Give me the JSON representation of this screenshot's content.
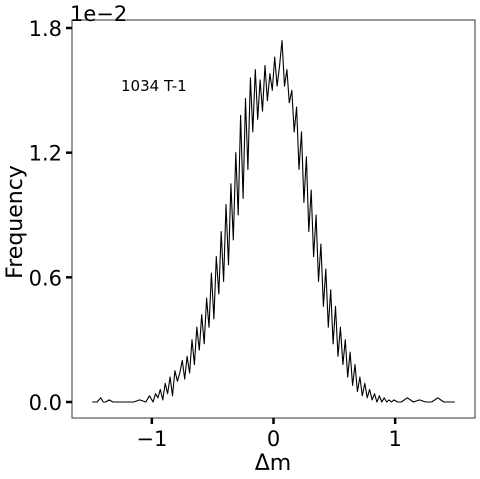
{
  "chart_data": {
    "type": "line",
    "title": "",
    "annotation": "1034 T-1",
    "scale_label": "1e−2",
    "xlabel": "Δm",
    "ylabel": "Frequency",
    "xlim": [
      -1.5,
      1.5
    ],
    "ylim": [
      0.0,
      1.8
    ],
    "x_ticks": [
      -1,
      0,
      1
    ],
    "x_tick_labels": [
      "−1",
      "0",
      "1"
    ],
    "y_ticks": [
      0.0,
      0.6,
      1.2,
      1.8
    ],
    "y_tick_labels": [
      "0.0",
      "0.6",
      "1.2",
      "1.8"
    ],
    "grid": false,
    "legend": "none",
    "line_color": "#000000",
    "series": [
      {
        "x": [
          -1.49,
          -1.45,
          -1.42,
          -1.4,
          -1.38,
          -1.35,
          -1.32,
          -1.3,
          -1.25,
          -1.2,
          -1.15,
          -1.1,
          -1.05,
          -1.02,
          -0.99,
          -0.97,
          -0.95,
          -0.93,
          -0.91,
          -0.89,
          -0.87,
          -0.85,
          -0.83,
          -0.81,
          -0.79,
          -0.77,
          -0.75,
          -0.73,
          -0.71,
          -0.69,
          -0.67,
          -0.65,
          -0.63,
          -0.61,
          -0.59,
          -0.57,
          -0.55,
          -0.53,
          -0.51,
          -0.49,
          -0.47,
          -0.45,
          -0.43,
          -0.41,
          -0.39,
          -0.37,
          -0.35,
          -0.33,
          -0.31,
          -0.29,
          -0.27,
          -0.25,
          -0.23,
          -0.21,
          -0.19,
          -0.17,
          -0.15,
          -0.13,
          -0.11,
          -0.09,
          -0.07,
          -0.05,
          -0.03,
          -0.01,
          0.01,
          0.03,
          0.05,
          0.07,
          0.09,
          0.11,
          0.13,
          0.15,
          0.17,
          0.19,
          0.21,
          0.23,
          0.25,
          0.27,
          0.29,
          0.31,
          0.33,
          0.35,
          0.37,
          0.39,
          0.41,
          0.43,
          0.45,
          0.47,
          0.49,
          0.51,
          0.53,
          0.55,
          0.57,
          0.59,
          0.61,
          0.63,
          0.65,
          0.67,
          0.69,
          0.71,
          0.73,
          0.75,
          0.77,
          0.79,
          0.81,
          0.83,
          0.85,
          0.87,
          0.89,
          0.91,
          0.93,
          0.95,
          0.97,
          0.99,
          1.02,
          1.05,
          1.1,
          1.15,
          1.2,
          1.25,
          1.3,
          1.35,
          1.4,
          1.45,
          1.49
        ],
        "y": [
          0.0,
          0.0,
          0.02,
          0.0,
          0.0,
          0.01,
          0.0,
          0.0,
          0.0,
          0.0,
          0.0,
          0.01,
          0.0,
          0.03,
          0.0,
          0.04,
          0.02,
          0.06,
          0.01,
          0.09,
          0.04,
          0.12,
          0.03,
          0.15,
          0.1,
          0.14,
          0.2,
          0.11,
          0.22,
          0.14,
          0.3,
          0.18,
          0.36,
          0.25,
          0.42,
          0.28,
          0.5,
          0.36,
          0.62,
          0.4,
          0.7,
          0.52,
          0.82,
          0.58,
          0.95,
          0.66,
          1.05,
          0.78,
          1.2,
          0.9,
          1.38,
          0.98,
          1.46,
          1.12,
          1.56,
          1.3,
          1.6,
          1.36,
          1.55,
          1.4,
          1.62,
          1.45,
          1.58,
          1.5,
          1.66,
          1.52,
          1.62,
          1.74,
          1.52,
          1.6,
          1.44,
          1.5,
          1.3,
          1.42,
          1.12,
          1.3,
          0.96,
          1.18,
          0.82,
          1.02,
          0.7,
          0.9,
          0.58,
          0.76,
          0.46,
          0.64,
          0.36,
          0.54,
          0.28,
          0.46,
          0.22,
          0.36,
          0.18,
          0.3,
          0.12,
          0.24,
          0.08,
          0.18,
          0.05,
          0.12,
          0.03,
          0.09,
          0.02,
          0.06,
          0.01,
          0.04,
          0.0,
          0.03,
          0.0,
          0.02,
          0.0,
          0.01,
          0.0,
          0.01,
          0.0,
          0.0,
          0.02,
          0.0,
          0.01,
          0.0,
          0.0,
          0.02,
          0.0,
          0.0,
          0.0
        ]
      }
    ]
  }
}
